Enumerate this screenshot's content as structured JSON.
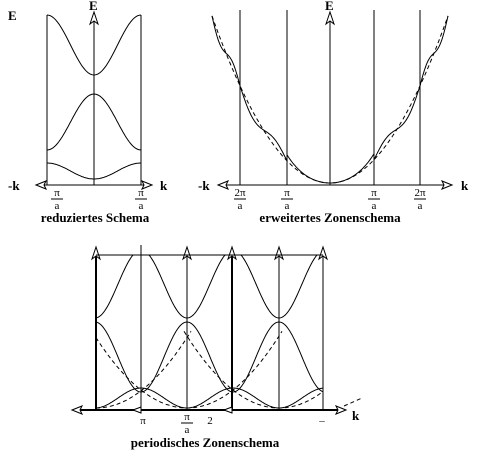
{
  "panels": [
    {
      "e_label": "E",
      "axis_e": "E",
      "neg_k": "-k",
      "k": "k",
      "ticks": [
        {
          "num": "π",
          "den": "a"
        },
        {
          "num": "π",
          "den": "a"
        }
      ],
      "caption": "reduziertes Schema"
    },
    {
      "axis_e": "E",
      "neg_k": "-k",
      "k": "k",
      "ticks": [
        {
          "num": "2π",
          "den": "a"
        },
        {
          "num": "π",
          "den": "a"
        },
        {
          "num": "π",
          "den": "a"
        },
        {
          "num": "2π",
          "den": "a"
        }
      ],
      "caption": "erweitertes Zonenschema"
    },
    {
      "ticks": [
        {
          "text": "π"
        },
        {
          "num": "π",
          "den": "a"
        },
        {
          "text": "2"
        },
        {
          "text": "–"
        }
      ],
      "k": "k",
      "caption": "periodisches Zonenschema"
    }
  ]
}
